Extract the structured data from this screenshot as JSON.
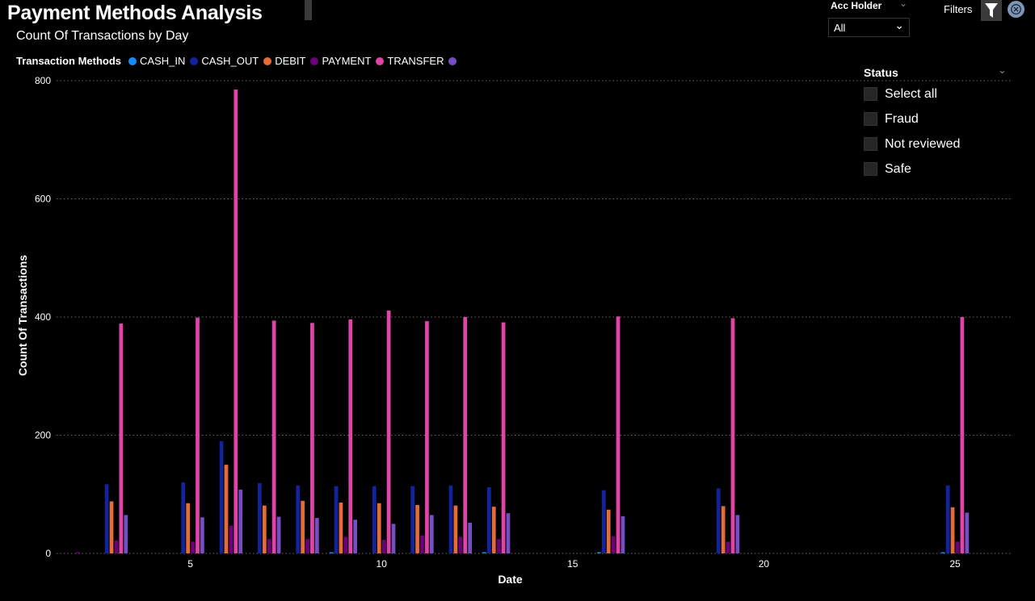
{
  "page": {
    "title": "Payment Methods Analysis"
  },
  "filters": {
    "acc_holder_label": "Acc Holder",
    "acc_holder_value": "All",
    "filters_label": "Filters",
    "filter_icon": "funnel-icon",
    "clear_icon": "close-circle-icon"
  },
  "status": {
    "title": "Status",
    "items": [
      "Select all",
      "Fraud",
      "Not reviewed",
      "Safe"
    ]
  },
  "legend_title": "Transaction Methods",
  "chart_data": {
    "type": "bar",
    "title": "Count Of Transactions by Day",
    "xlabel": "Date",
    "ylabel": "Count Of Transactions",
    "ylim": [
      0,
      800
    ],
    "xlim": [
      1.5,
      26.5
    ],
    "yticks": [
      0,
      200,
      400,
      600,
      800
    ],
    "xticks": [
      5,
      10,
      15,
      20,
      25
    ],
    "grid": true,
    "legend_position": "top-left",
    "x": [
      2,
      3,
      5,
      6,
      7,
      8,
      9,
      10,
      11,
      12,
      13,
      16,
      19,
      25
    ],
    "series": [
      {
        "name": "CASH_IN",
        "color": "#118dff",
        "values": [
          0,
          0,
          0,
          0,
          0,
          0,
          2,
          0,
          0,
          0,
          2,
          2,
          0,
          2
        ]
      },
      {
        "name": "CASH_OUT",
        "color": "#12239e",
        "values": [
          0,
          117,
          120,
          190,
          119,
          115,
          114,
          114,
          114,
          115,
          112,
          107,
          110,
          115
        ]
      },
      {
        "name": "DEBIT",
        "color": "#e66c37",
        "values": [
          0,
          88,
          85,
          150,
          81,
          89,
          86,
          85,
          82,
          81,
          79,
          74,
          80,
          78
        ]
      },
      {
        "name": "PAYMENT",
        "color": "#6b007b",
        "values": [
          2,
          22,
          20,
          47,
          24,
          24,
          28,
          23,
          30,
          28,
          24,
          29,
          20,
          20
        ]
      },
      {
        "name": "TRANSFER",
        "color": "#e044a7",
        "values": [
          0,
          389,
          399,
          785,
          394,
          390,
          396,
          411,
          393,
          400,
          391,
          401,
          398,
          400
        ]
      },
      {
        "name": "",
        "color": "#744ec2",
        "values": [
          0,
          65,
          61,
          108,
          62,
          60,
          57,
          50,
          65,
          52,
          68,
          63,
          65,
          69
        ]
      }
    ]
  }
}
